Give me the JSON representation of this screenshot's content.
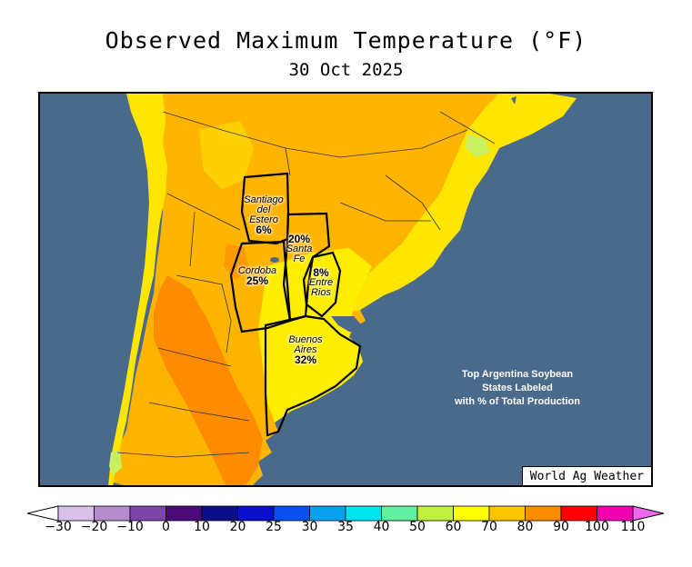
{
  "header": {
    "title": "Observed Maximum Temperature (°F)",
    "date": "30 Oct 2025"
  },
  "map": {
    "credit": "World Ag Weather",
    "annotation_lines": [
      "Top Argentina Soybean",
      "States Labeled",
      "with % of Total Production"
    ],
    "ocean_color": "#4a6a8c",
    "provinces": [
      {
        "name_lines": [
          "Santiago",
          "del",
          "Estero"
        ],
        "share": "6%",
        "share_first": false
      },
      {
        "name_lines": [
          "Santa",
          "Fe"
        ],
        "share": "20%",
        "share_first": true
      },
      {
        "name_lines": [
          "Cordoba"
        ],
        "share": "25%",
        "share_first": false
      },
      {
        "name_lines": [
          "Entre",
          "Rios"
        ],
        "share": "8%",
        "share_first": true
      },
      {
        "name_lines": [
          "Buenos",
          "Aires"
        ],
        "share": "32%",
        "share_first": false
      }
    ]
  },
  "colorbar": {
    "ticks": [
      "−30",
      "−20",
      "−10",
      "0",
      "10",
      "20",
      "25",
      "30",
      "35",
      "40",
      "50",
      "60",
      "70",
      "80",
      "90",
      "100",
      "110"
    ],
    "low_arrow_color": "#ffffff",
    "high_arrow_color": "#ee66ee",
    "colors": [
      "#d8c0e8",
      "#b48ccc",
      "#7e44a8",
      "#4a0a78",
      "#0c0c8c",
      "#0a10c8",
      "#0a50f0",
      "#0aa0f0",
      "#00e4f0",
      "#60f0a0",
      "#c0f040",
      "#ffff00",
      "#ffc400",
      "#ff8c00",
      "#ff0000",
      "#f000b0"
    ]
  }
}
